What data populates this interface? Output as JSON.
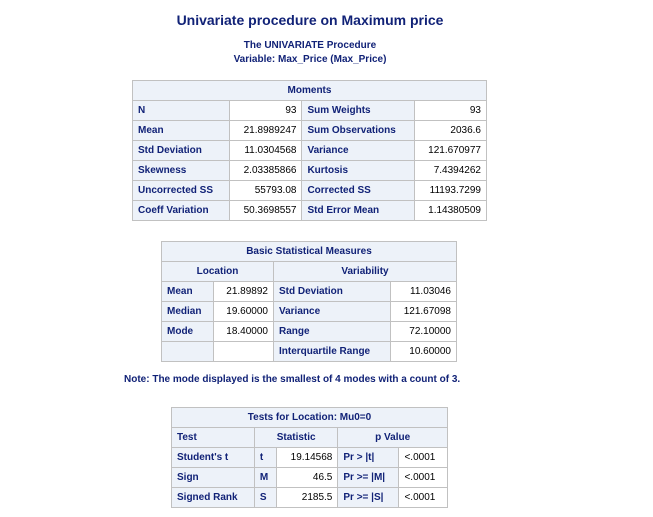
{
  "page": {
    "title": "Univariate procedure on Maximum price",
    "proc_title": "The UNIVARIATE Procedure",
    "variable_line": "Variable: Max_Price (Max_Price)"
  },
  "moments": {
    "caption": "Moments",
    "rows": [
      {
        "l1": "N",
        "v1": "93",
        "l2": "Sum Weights",
        "v2": "93"
      },
      {
        "l1": "Mean",
        "v1": "21.8989247",
        "l2": "Sum Observations",
        "v2": "2036.6"
      },
      {
        "l1": "Std Deviation",
        "v1": "11.0304568",
        "l2": "Variance",
        "v2": "121.670977"
      },
      {
        "l1": "Skewness",
        "v1": "2.03385866",
        "l2": "Kurtosis",
        "v2": "7.4394262"
      },
      {
        "l1": "Uncorrected SS",
        "v1": "55793.08",
        "l2": "Corrected SS",
        "v2": "11193.7299"
      },
      {
        "l1": "Coeff Variation",
        "v1": "50.3698557",
        "l2": "Std Error Mean",
        "v2": "1.14380509"
      }
    ]
  },
  "basic": {
    "caption": "Basic Statistical Measures",
    "location_header": "Location",
    "variability_header": "Variability",
    "rows": [
      {
        "l1": "Mean",
        "v1": "21.89892",
        "l2": "Std Deviation",
        "v2": "11.03046"
      },
      {
        "l1": "Median",
        "v1": "19.60000",
        "l2": "Variance",
        "v2": "121.67098"
      },
      {
        "l1": "Mode",
        "v1": "18.40000",
        "l2": "Range",
        "v2": "72.10000"
      },
      {
        "l1": "",
        "v1": "",
        "l2": "Interquartile Range",
        "v2": "10.60000"
      }
    ]
  },
  "note": "Note: The mode displayed is the smallest of 4 modes with a count of 3.",
  "tests": {
    "caption": "Tests for Location: Mu0=0",
    "headers": {
      "test": "Test",
      "statistic": "Statistic",
      "pvalue": "p Value"
    },
    "rows": [
      {
        "test": "Student's t",
        "sym": "t",
        "stat": "19.14568",
        "pl": "Pr > |t|",
        "pv": "<.0001"
      },
      {
        "test": "Sign",
        "sym": "M",
        "stat": "46.5",
        "pl": "Pr >= |M|",
        "pv": "<.0001"
      },
      {
        "test": "Signed Rank",
        "sym": "S",
        "stat": "2185.5",
        "pl": "Pr >= |S|",
        "pv": "<.0001"
      }
    ]
  }
}
